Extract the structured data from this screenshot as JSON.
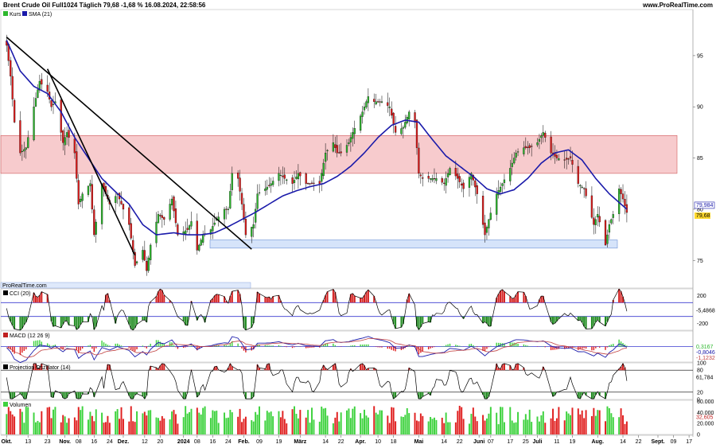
{
  "header": {
    "instrument": "Brent Crude Oil Full1024 Täglich 79,68 -1,68 % 16.08.2024, 22:58:56",
    "site": "www.ProRealTime.com"
  },
  "colors": {
    "up_candle": "#2db82d",
    "down_candle": "#e01c1c",
    "sma_line": "#1a1aaa",
    "resistance_zone": "#f4b9bc",
    "support_zone": "#d6e4fa",
    "osc_positive": "#d42020",
    "osc_negative": "#1e8a1e",
    "macd_signal": "#c04040",
    "volume_up": "#3ed23e",
    "volume_down": "#e02020"
  },
  "chart_data": [
    {
      "type": "candlestick",
      "legend": [
        "Kurs",
        "SMA (21)"
      ],
      "last_price_label": "79,68",
      "sma_last_label": "79,984",
      "y_ticks": [
        {
          "value": 95,
          "label": "95"
        },
        {
          "value": 90,
          "label": "90"
        },
        {
          "value": 85,
          "label": "85"
        },
        {
          "value": 80,
          "label": "80"
        },
        {
          "value": 75,
          "label": "75"
        }
      ],
      "ylim": [
        72.3,
        99.5
      ],
      "resistance_zone": [
        83.5,
        87.2
      ],
      "support_zone": [
        76.2,
        77.0
      ],
      "trendlines": [
        {
          "from": [
            "2023-10-02",
            96.8
          ],
          "to": [
            "2024-02-05",
            76.1
          ]
        },
        {
          "from": [
            "2023-10-23",
            93.7
          ],
          "to": [
            "2023-12-07",
            75.5
          ]
        }
      ],
      "source_label": "ProRealTime.com",
      "close_path": [
        [
          "2023-10-02",
          96.0
        ],
        [
          "2023-10-04",
          93.0
        ],
        [
          "2023-10-06",
          88.5
        ],
        [
          "2023-10-09",
          85.5
        ],
        [
          "2023-10-12",
          86.0
        ],
        [
          "2023-10-16",
          90.0
        ],
        [
          "2023-10-19",
          92.5
        ],
        [
          "2023-10-20",
          92.2
        ],
        [
          "2023-10-23",
          91.5
        ],
        [
          "2023-10-25",
          90.0
        ],
        [
          "2023-10-27",
          90.5
        ],
        [
          "2023-10-31",
          86.5
        ],
        [
          "2023-11-02",
          87.5
        ],
        [
          "2023-11-06",
          85.5
        ],
        [
          "2023-11-08",
          80.5
        ],
        [
          "2023-11-10",
          81.5
        ],
        [
          "2023-11-14",
          82.5
        ],
        [
          "2023-11-16",
          77.5
        ],
        [
          "2023-11-20",
          82.5
        ],
        [
          "2023-11-22",
          81.5
        ],
        [
          "2023-11-24",
          80.5
        ],
        [
          "2023-11-28",
          81.5
        ],
        [
          "2023-11-30",
          80.5
        ],
        [
          "2023-12-04",
          78.5
        ],
        [
          "2023-12-07",
          74.5
        ],
        [
          "2023-12-11",
          76.0
        ],
        [
          "2023-12-13",
          74.0
        ],
        [
          "2023-12-15",
          76.5
        ],
        [
          "2023-12-19",
          79.5
        ],
        [
          "2023-12-22",
          79.0
        ],
        [
          "2023-12-26",
          81.0
        ],
        [
          "2023-12-29",
          77.5
        ],
        [
          "2024-01-03",
          78.0
        ],
        [
          "2024-01-05",
          78.8
        ],
        [
          "2024-01-08",
          76.0
        ],
        [
          "2024-01-11",
          77.5
        ],
        [
          "2024-01-15",
          78.0
        ],
        [
          "2024-01-18",
          79.0
        ],
        [
          "2024-01-22",
          80.0
        ],
        [
          "2024-01-24",
          80.0
        ],
        [
          "2024-01-26",
          83.5
        ],
        [
          "2024-01-29",
          83.0
        ],
        [
          "2024-01-31",
          80.5
        ],
        [
          "2024-02-02",
          77.5
        ],
        [
          "2024-02-06",
          78.5
        ],
        [
          "2024-02-08",
          81.5
        ],
        [
          "2024-02-12",
          82.0
        ],
        [
          "2024-02-15",
          82.5
        ],
        [
          "2024-02-19",
          83.5
        ],
        [
          "2024-02-22",
          83.0
        ],
        [
          "2024-02-26",
          82.5
        ],
        [
          "2024-02-29",
          83.5
        ],
        [
          "2024-03-04",
          82.5
        ],
        [
          "2024-03-07",
          82.5
        ],
        [
          "2024-03-11",
          82.5
        ],
        [
          "2024-03-14",
          85.5
        ],
        [
          "2024-03-18",
          86.5
        ],
        [
          "2024-03-20",
          85.5
        ],
        [
          "2024-03-22",
          85.5
        ],
        [
          "2024-03-26",
          86.5
        ],
        [
          "2024-03-28",
          87.5
        ],
        [
          "2024-04-02",
          89.5
        ],
        [
          "2024-04-05",
          91.0
        ],
        [
          "2024-04-08",
          90.5
        ],
        [
          "2024-04-11",
          90.5
        ],
        [
          "2024-04-12",
          90.5
        ],
        [
          "2024-04-16",
          90.0
        ],
        [
          "2024-04-19",
          87.5
        ],
        [
          "2024-04-23",
          88.0
        ],
        [
          "2024-04-26",
          89.5
        ],
        [
          "2024-04-29",
          88.5
        ],
        [
          "2024-05-01",
          83.5
        ],
        [
          "2024-05-03",
          83.0
        ],
        [
          "2024-05-07",
          83.0
        ],
        [
          "2024-05-10",
          83.0
        ],
        [
          "2024-05-14",
          82.5
        ],
        [
          "2024-05-17",
          84.0
        ],
        [
          "2024-05-21",
          83.0
        ],
        [
          "2024-05-24",
          82.0
        ],
        [
          "2024-05-28",
          83.5
        ],
        [
          "2024-05-31",
          81.5
        ],
        [
          "2024-06-03",
          78.5
        ],
        [
          "2024-06-04",
          77.5
        ],
        [
          "2024-06-06",
          79.0
        ],
        [
          "2024-06-10",
          81.5
        ],
        [
          "2024-06-13",
          82.5
        ],
        [
          "2024-06-17",
          84.0
        ],
        [
          "2024-06-20",
          85.5
        ],
        [
          "2024-06-24",
          86.0
        ],
        [
          "2024-06-27",
          86.0
        ],
        [
          "2024-07-01",
          86.5
        ],
        [
          "2024-07-04",
          87.5
        ],
        [
          "2024-07-08",
          85.5
        ],
        [
          "2024-07-11",
          85.0
        ],
        [
          "2024-07-15",
          84.8
        ],
        [
          "2024-07-18",
          85.0
        ],
        [
          "2024-07-22",
          82.5
        ],
        [
          "2024-07-25",
          82.0
        ],
        [
          "2024-07-30",
          78.5
        ],
        [
          "2024-08-01",
          79.5
        ],
        [
          "2024-08-05",
          76.5
        ],
        [
          "2024-08-07",
          78.5
        ],
        [
          "2024-08-09",
          79.5
        ],
        [
          "2024-08-12",
          82.0
        ],
        [
          "2024-08-14",
          81.0
        ],
        [
          "2024-08-16",
          79.68
        ]
      ],
      "sma_path": [
        [
          "2023-10-02",
          96.5
        ],
        [
          "2023-10-09",
          93.5
        ],
        [
          "2023-10-16",
          92.0
        ],
        [
          "2023-10-23",
          91.3
        ],
        [
          "2023-10-30",
          89.5
        ],
        [
          "2023-11-06",
          87.0
        ],
        [
          "2023-11-13",
          85.0
        ],
        [
          "2023-11-20",
          83.0
        ],
        [
          "2023-11-27",
          81.7
        ],
        [
          "2023-12-04",
          80.5
        ],
        [
          "2023-12-11",
          78.5
        ],
        [
          "2023-12-18",
          77.5
        ],
        [
          "2023-12-27",
          77.7
        ],
        [
          "2024-01-03",
          77.5
        ],
        [
          "2024-01-10",
          77.5
        ],
        [
          "2024-01-17",
          77.7
        ],
        [
          "2024-01-24",
          78.3
        ],
        [
          "2024-01-31",
          79.0
        ],
        [
          "2024-02-07",
          79.7
        ],
        [
          "2024-02-14",
          80.5
        ],
        [
          "2024-02-21",
          81.3
        ],
        [
          "2024-02-28",
          81.8
        ],
        [
          "2024-03-06",
          82.2
        ],
        [
          "2024-03-13",
          82.5
        ],
        [
          "2024-03-20",
          83.2
        ],
        [
          "2024-03-27",
          84.2
        ],
        [
          "2024-04-03",
          85.5
        ],
        [
          "2024-04-10",
          87.0
        ],
        [
          "2024-04-17",
          88.2
        ],
        [
          "2024-04-24",
          88.7
        ],
        [
          "2024-05-01",
          88.5
        ],
        [
          "2024-05-08",
          86.8
        ],
        [
          "2024-05-15",
          85.2
        ],
        [
          "2024-05-22",
          84.2
        ],
        [
          "2024-05-29",
          83.2
        ],
        [
          "2024-06-05",
          82.0
        ],
        [
          "2024-06-12",
          81.5
        ],
        [
          "2024-06-19",
          81.9
        ],
        [
          "2024-06-26",
          83.0
        ],
        [
          "2024-07-03",
          84.5
        ],
        [
          "2024-07-10",
          85.5
        ],
        [
          "2024-07-17",
          85.8
        ],
        [
          "2024-07-24",
          84.8
        ],
        [
          "2024-07-31",
          83.0
        ],
        [
          "2024-08-07",
          81.5
        ],
        [
          "2024-08-16",
          80.0
        ]
      ]
    },
    {
      "type": "area",
      "title": "CCI (20)",
      "value_label": "-5,4868",
      "y_ticks": [
        {
          "value": 200,
          "label": "200"
        },
        {
          "value": -200,
          "label": "-200"
        }
      ],
      "levels": [
        100,
        -100
      ],
      "ylim": [
        -300,
        300
      ]
    },
    {
      "type": "bar",
      "title": "MACD (12 26 9)",
      "value_labels": [
        "0,3167",
        "-0,8046",
        "-1,1232"
      ],
      "ylim": [
        -3.5,
        3.5
      ]
    },
    {
      "type": "line",
      "title": "Projection Oszillator (14)",
      "value_label": "61,784",
      "y_ticks": [
        {
          "value": 100,
          "label": "100"
        },
        {
          "value": 80,
          "label": "80"
        },
        {
          "value": 20,
          "label": "20"
        },
        {
          "value": 0,
          "label": "0"
        }
      ],
      "levels": [
        80,
        20
      ],
      "ylim": [
        0,
        100
      ]
    },
    {
      "type": "bar",
      "title": "Volumen",
      "value_label": "32,605",
      "y_ticks": [
        {
          "value": 60000,
          "label": "60.000"
        },
        {
          "value": 40000,
          "label": "40.000"
        },
        {
          "value": 20000,
          "label": "20.000"
        },
        {
          "value": 0,
          "label": "0"
        }
      ],
      "ylim": [
        0,
        62000
      ]
    }
  ],
  "x_axis": {
    "start": "2023-09-29",
    "end": "2024-09-19",
    "labels": [
      {
        "date": "2023-10-02",
        "label": "Okt.",
        "bold": true
      },
      {
        "date": "2023-10-13",
        "label": "13",
        "bold": false
      },
      {
        "date": "2023-10-23",
        "label": "23",
        "bold": false
      },
      {
        "date": "2023-11-01",
        "label": "Nov.",
        "bold": true
      },
      {
        "date": "2023-11-08",
        "label": "08",
        "bold": false
      },
      {
        "date": "2023-11-16",
        "label": "16",
        "bold": false
      },
      {
        "date": "2023-11-24",
        "label": "24",
        "bold": false
      },
      {
        "date": "2023-12-01",
        "label": "Dez.",
        "bold": true
      },
      {
        "date": "2023-12-12",
        "label": "12",
        "bold": false
      },
      {
        "date": "2023-12-20",
        "label": "20",
        "bold": false
      },
      {
        "date": "2024-01-01",
        "label": "2024",
        "bold": true
      },
      {
        "date": "2024-01-08",
        "label": "08",
        "bold": false
      },
      {
        "date": "2024-01-16",
        "label": "16",
        "bold": false
      },
      {
        "date": "2024-01-24",
        "label": "24",
        "bold": false
      },
      {
        "date": "2024-02-01",
        "label": "Feb.",
        "bold": true
      },
      {
        "date": "2024-02-09",
        "label": "09",
        "bold": false
      },
      {
        "date": "2024-02-19",
        "label": "19",
        "bold": false
      },
      {
        "date": "2024-03-01",
        "label": "März",
        "bold": true
      },
      {
        "date": "2024-03-14",
        "label": "14",
        "bold": false
      },
      {
        "date": "2024-03-22",
        "label": "22",
        "bold": false
      },
      {
        "date": "2024-04-01",
        "label": "Apr.",
        "bold": true
      },
      {
        "date": "2024-04-10",
        "label": "10",
        "bold": false
      },
      {
        "date": "2024-04-18",
        "label": "18",
        "bold": false
      },
      {
        "date": "2024-05-01",
        "label": "Mai",
        "bold": true
      },
      {
        "date": "2024-05-14",
        "label": "14",
        "bold": false
      },
      {
        "date": "2024-05-22",
        "label": "22",
        "bold": false
      },
      {
        "date": "2024-06-01",
        "label": "Juni",
        "bold": true
      },
      {
        "date": "2024-06-07",
        "label": "07",
        "bold": false
      },
      {
        "date": "2024-06-17",
        "label": "17",
        "bold": false
      },
      {
        "date": "2024-06-25",
        "label": "25",
        "bold": false
      },
      {
        "date": "2024-07-01",
        "label": "Juli",
        "bold": true
      },
      {
        "date": "2024-07-11",
        "label": "11",
        "bold": false
      },
      {
        "date": "2024-07-19",
        "label": "19",
        "bold": false
      },
      {
        "date": "2024-08-01",
        "label": "Aug.",
        "bold": true
      },
      {
        "date": "2024-08-14",
        "label": "14",
        "bold": false
      },
      {
        "date": "2024-08-22",
        "label": "22",
        "bold": false
      },
      {
        "date": "2024-09-01",
        "label": "Sept.",
        "bold": true
      },
      {
        "date": "2024-09-09",
        "label": "09",
        "bold": false
      },
      {
        "date": "2024-09-17",
        "label": "17",
        "bold": false
      }
    ]
  }
}
